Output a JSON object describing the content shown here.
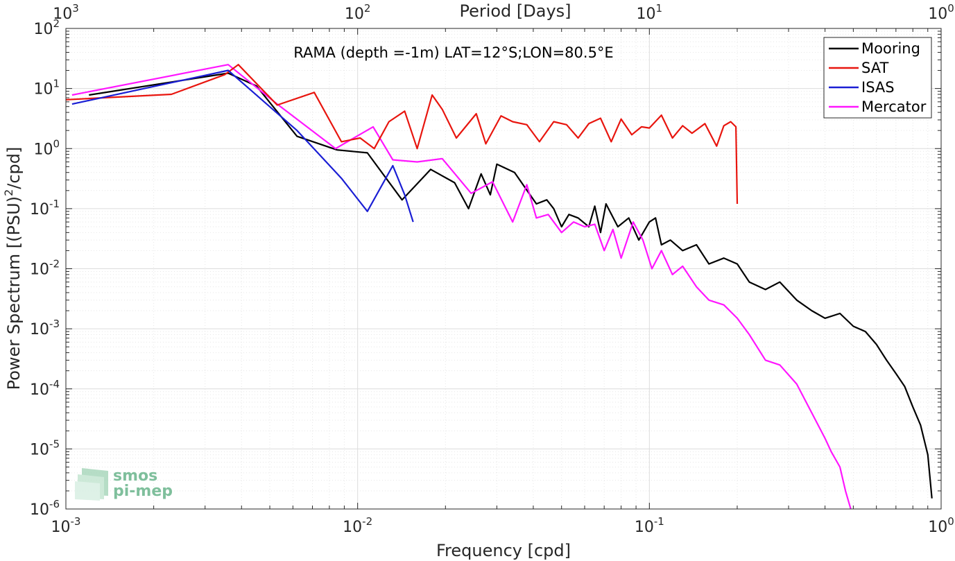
{
  "chart_data": {
    "type": "line",
    "title": "RAMA (depth =-1m) LAT=12°S;LON=80.5°E",
    "xlabel": "Frequency [cpd]",
    "ylabel": "Power Spectrum [(PSU)",
    "ylabel_sup": "2",
    "ylabel_tail": "/cpd]",
    "top_xlabel": "Period [Days]",
    "xscale": "log",
    "yscale": "log",
    "xlim": [
      0.001,
      1
    ],
    "ylim": [
      1e-06,
      100
    ],
    "grid": true,
    "legend_position": "top-right",
    "x_ticks": [
      {
        "v": 0.001,
        "base": "10",
        "exp": "-3"
      },
      {
        "v": 0.01,
        "base": "10",
        "exp": "-2"
      },
      {
        "v": 0.1,
        "base": "10",
        "exp": "-1"
      },
      {
        "v": 1,
        "base": "10",
        "exp": "0"
      }
    ],
    "y_ticks": [
      {
        "v": 1e-06,
        "base": "10",
        "exp": "-6"
      },
      {
        "v": 1e-05,
        "base": "10",
        "exp": "-5"
      },
      {
        "v": 0.0001,
        "base": "10",
        "exp": "-4"
      },
      {
        "v": 0.001,
        "base": "10",
        "exp": "-3"
      },
      {
        "v": 0.01,
        "base": "10",
        "exp": "-2"
      },
      {
        "v": 0.1,
        "base": "10",
        "exp": "-1"
      },
      {
        "v": 1,
        "base": "10",
        "exp": "0"
      },
      {
        "v": 10,
        "base": "10",
        "exp": "1"
      },
      {
        "v": 100,
        "base": "10",
        "exp": "2"
      }
    ],
    "top_ticks": [
      {
        "v": 0.001,
        "base": "10",
        "exp": "3"
      },
      {
        "v": 0.01,
        "base": "10",
        "exp": "2"
      },
      {
        "v": 0.1,
        "base": "10",
        "exp": "1"
      },
      {
        "v": 1,
        "base": "10",
        "exp": "0"
      }
    ],
    "series": [
      {
        "name": "Mooring",
        "color": "#000000",
        "x": [
          0.0012,
          0.0036,
          0.0045,
          0.0062,
          0.0085,
          0.0108,
          0.0142,
          0.0178,
          0.0215,
          0.024,
          0.0265,
          0.0285,
          0.03,
          0.0345,
          0.039,
          0.041,
          0.0445,
          0.047,
          0.05,
          0.053,
          0.057,
          0.062,
          0.065,
          0.068,
          0.071,
          0.078,
          0.085,
          0.092,
          0.1,
          0.105,
          0.11,
          0.118,
          0.13,
          0.145,
          0.16,
          0.18,
          0.2,
          0.22,
          0.25,
          0.28,
          0.32,
          0.36,
          0.4,
          0.45,
          0.5,
          0.55,
          0.6,
          0.65,
          0.7,
          0.75,
          0.8,
          0.85,
          0.9,
          0.93
        ],
        "y": [
          7.8,
          18,
          11,
          1.6,
          0.95,
          0.85,
          0.14,
          0.45,
          0.27,
          0.1,
          0.38,
          0.17,
          0.55,
          0.4,
          0.17,
          0.12,
          0.14,
          0.1,
          0.05,
          0.08,
          0.07,
          0.05,
          0.11,
          0.04,
          0.12,
          0.05,
          0.07,
          0.03,
          0.06,
          0.07,
          0.025,
          0.03,
          0.02,
          0.025,
          0.012,
          0.015,
          0.012,
          0.006,
          0.0045,
          0.006,
          0.003,
          0.002,
          0.0015,
          0.0018,
          0.0011,
          0.0009,
          0.00055,
          0.0003,
          0.00018,
          0.00011,
          5e-05,
          2.5e-05,
          8e-06,
          1.5e-06
        ]
      },
      {
        "name": "SAT",
        "color": "#e8150e",
        "x": [
          0.001,
          0.0023,
          0.0035,
          0.0039,
          0.0053,
          0.0071,
          0.0088,
          0.0102,
          0.0114,
          0.0128,
          0.0145,
          0.016,
          0.018,
          0.0195,
          0.0218,
          0.0255,
          0.0275,
          0.031,
          0.034,
          0.038,
          0.042,
          0.047,
          0.052,
          0.057,
          0.062,
          0.068,
          0.074,
          0.08,
          0.087,
          0.094,
          0.1,
          0.11,
          0.12,
          0.13,
          0.14,
          0.155,
          0.17,
          0.18,
          0.19,
          0.198,
          0.2
        ],
        "y": [
          6.5,
          8,
          17,
          25,
          5.3,
          8.6,
          1.3,
          1.5,
          1.0,
          2.8,
          4.2,
          1.0,
          7.8,
          4.5,
          1.5,
          3.8,
          1.2,
          3.5,
          2.8,
          2.5,
          1.3,
          2.8,
          2.5,
          1.5,
          2.6,
          3.2,
          1.3,
          3.1,
          1.7,
          2.3,
          2.2,
          3.6,
          1.5,
          2.4,
          1.8,
          2.6,
          1.1,
          2.4,
          2.8,
          2.3,
          0.12
        ]
      },
      {
        "name": "ISAS",
        "color": "#1a1ed4",
        "x": [
          0.00105,
          0.0036,
          0.0062,
          0.0088,
          0.0108,
          0.0132,
          0.0145,
          0.0155
        ],
        "y": [
          5.5,
          20,
          2.0,
          0.32,
          0.09,
          0.52,
          0.17,
          0.06
        ]
      },
      {
        "name": "Mercator",
        "color": "#ff16ff",
        "x": [
          0.00105,
          0.0036,
          0.0053,
          0.0084,
          0.0113,
          0.0132,
          0.016,
          0.0195,
          0.0245,
          0.029,
          0.034,
          0.038,
          0.041,
          0.045,
          0.05,
          0.055,
          0.06,
          0.065,
          0.07,
          0.075,
          0.08,
          0.088,
          0.095,
          0.102,
          0.11,
          0.12,
          0.13,
          0.145,
          0.16,
          0.18,
          0.2,
          0.22,
          0.25,
          0.28,
          0.32,
          0.36,
          0.4,
          0.42,
          0.45,
          0.47,
          0.49
        ],
        "y": [
          7.8,
          25,
          5.5,
          1.0,
          2.3,
          0.65,
          0.6,
          0.68,
          0.18,
          0.28,
          0.06,
          0.25,
          0.07,
          0.08,
          0.04,
          0.06,
          0.05,
          0.055,
          0.02,
          0.045,
          0.015,
          0.06,
          0.03,
          0.01,
          0.02,
          0.008,
          0.011,
          0.005,
          0.003,
          0.0025,
          0.0015,
          0.0008,
          0.0003,
          0.00025,
          0.00012,
          4e-05,
          1.5e-05,
          9e-06,
          5e-06,
          2e-06,
          1e-06
        ]
      }
    ]
  },
  "logo": {
    "line1": "smos",
    "line2": "pi-mep"
  }
}
